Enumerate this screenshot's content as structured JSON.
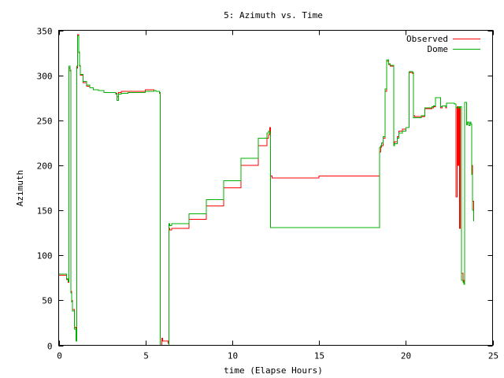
{
  "chart_data": {
    "type": "line",
    "title": "5: Azimuth vs. Time",
    "xlabel": "time (Elapse Hours)",
    "ylabel": "Azimuth",
    "xlim": [
      0,
      25
    ],
    "ylim": [
      0,
      350
    ],
    "xticks": [
      0,
      5,
      10,
      15,
      20,
      25
    ],
    "yticks": [
      0,
      50,
      100,
      150,
      200,
      250,
      300,
      350
    ],
    "grid": false,
    "legend_position": "top-right",
    "series": [
      {
        "name": "Observed",
        "color": "#ff0000",
        "x": [
          0,
          0.45,
          0.55,
          0.6,
          0.65,
          0.7,
          0.75,
          0.8,
          0.9,
          1.0,
          1.05,
          1.1,
          1.15,
          1.2,
          1.25,
          1.4,
          1.6,
          1.8,
          2.0,
          2.3,
          2.6,
          3.0,
          3.3,
          3.35,
          3.45,
          3.6,
          4.0,
          5.0,
          5.5,
          5.6,
          5.8,
          5.85,
          5.95,
          6.0,
          6.3,
          6.35,
          6.4,
          6.5,
          7.5,
          8.5,
          9.5,
          10.5,
          11.5,
          12.0,
          12.1,
          12.15,
          12.2,
          12.3,
          13.0,
          14.0,
          15.0,
          16.0,
          17.0,
          18.0,
          18.4,
          18.5,
          18.55,
          18.6,
          18.7,
          18.8,
          18.9,
          19.0,
          19.1,
          19.3,
          19.35,
          19.5,
          19.6,
          19.8,
          20.0,
          20.2,
          20.4,
          20.45,
          20.5,
          20.9,
          21.0,
          21.1,
          21.5,
          21.6,
          21.7,
          22.0,
          22.1,
          22.3,
          22.35,
          22.5,
          22.8,
          22.9,
          22.95,
          23.0,
          23.05,
          23.1,
          23.15,
          23.2,
          23.3,
          23.35,
          23.4,
          23.45,
          23.5,
          23.55,
          23.65,
          23.7,
          23.75,
          23.8,
          23.85,
          23.9
        ],
        "y": [
          78,
          73,
          70,
          308,
          305,
          60,
          50,
          40,
          20,
          6,
          308,
          345,
          325,
          310,
          300,
          292,
          288,
          286,
          284,
          283,
          281,
          281,
          280,
          276,
          281,
          282,
          282,
          284,
          283,
          282,
          280,
          0,
          8,
          5,
          2,
          130,
          128,
          130,
          140,
          155,
          175,
          200,
          222,
          230,
          234,
          242,
          188,
          186,
          186,
          186,
          188,
          188,
          188,
          188,
          188,
          215,
          220,
          222,
          230,
          282,
          316,
          312,
          310,
          224,
          226,
          232,
          238,
          240,
          242,
          303,
          302,
          255,
          254,
          254,
          254,
          263,
          264,
          265,
          275,
          264,
          266,
          264,
          269,
          269,
          268,
          165,
          265,
          200,
          265,
          130,
          265,
          80,
          72,
          69,
          270,
          270,
          245,
          248,
          244,
          248,
          246,
          200,
          160,
          140
        ]
      },
      {
        "name": "Dome",
        "color": "#00b000",
        "x": [
          0,
          0.45,
          0.55,
          0.6,
          0.65,
          0.7,
          0.75,
          0.8,
          0.9,
          1.0,
          1.05,
          1.1,
          1.15,
          1.2,
          1.25,
          1.4,
          1.6,
          1.8,
          2.0,
          2.3,
          2.6,
          3.0,
          3.3,
          3.35,
          3.45,
          3.6,
          4.0,
          5.0,
          5.5,
          5.6,
          5.8,
          5.85,
          5.95,
          6.0,
          6.3,
          6.35,
          6.4,
          6.5,
          7.5,
          8.5,
          9.5,
          10.5,
          11.5,
          12.0,
          12.1,
          12.15,
          12.2,
          12.3,
          13.0,
          14.0,
          15.0,
          16.0,
          17.0,
          18.0,
          18.4,
          18.5,
          18.55,
          18.6,
          18.7,
          18.8,
          18.9,
          19.0,
          19.1,
          19.3,
          19.35,
          19.5,
          19.6,
          19.8,
          20.0,
          20.2,
          20.4,
          20.45,
          20.5,
          20.9,
          21.0,
          21.1,
          21.5,
          21.6,
          21.7,
          22.0,
          22.1,
          22.3,
          22.35,
          22.5,
          22.8,
          22.9,
          22.95,
          23.0,
          23.05,
          23.1,
          23.15,
          23.2,
          23.3,
          23.35,
          23.4,
          23.45,
          23.5,
          23.55,
          23.65,
          23.7,
          23.75,
          23.8,
          23.85,
          23.9
        ],
        "y": [
          79,
          74,
          71,
          310,
          306,
          58,
          48,
          38,
          18,
          5,
          310,
          344,
          326,
          311,
          301,
          293,
          289,
          286,
          284,
          283,
          281,
          281,
          279,
          272,
          279,
          280,
          281,
          282,
          283,
          282,
          281,
          0,
          0,
          0,
          0,
          135,
          133,
          135,
          146,
          162,
          183,
          208,
          230,
          236,
          238,
          236,
          131,
          131,
          131,
          131,
          131,
          131,
          131,
          131,
          131,
          220,
          222,
          225,
          232,
          285,
          317,
          313,
          311,
          222,
          224,
          230,
          236,
          238,
          242,
          304,
          303,
          253,
          253,
          255,
          255,
          264,
          265,
          266,
          275,
          265,
          266,
          265,
          269,
          269,
          268,
          264,
          264,
          264,
          265,
          264,
          265,
          72,
          70,
          68,
          270,
          270,
          245,
          248,
          244,
          248,
          246,
          190,
          150,
          138
        ]
      }
    ]
  }
}
